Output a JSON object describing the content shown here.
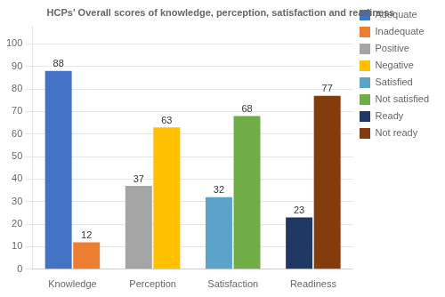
{
  "chart_data": {
    "type": "bar",
    "title": "HCPs' Overall scores of knowledge, perception, satisfaction and readiness",
    "categories": [
      "Knowledge",
      "Perception",
      "Satisfaction",
      "Readiness"
    ],
    "series": [
      {
        "name": "Adequate",
        "color": "#4472C4",
        "values": [
          88,
          null,
          null,
          null
        ]
      },
      {
        "name": "Inadequate",
        "color": "#ED7D31",
        "values": [
          12,
          null,
          null,
          null
        ]
      },
      {
        "name": "Positive",
        "color": "#A5A5A5",
        "values": [
          null,
          37,
          null,
          null
        ]
      },
      {
        "name": "Negative",
        "color": "#FFC000",
        "values": [
          null,
          63,
          null,
          null
        ]
      },
      {
        "name": "Satisfied",
        "color": "#5BA3C9",
        "values": [
          null,
          null,
          32,
          null
        ]
      },
      {
        "name": "Not satisfied",
        "color": "#70AD47",
        "values": [
          null,
          null,
          68,
          null
        ]
      },
      {
        "name": "Ready",
        "color": "#1F3864",
        "values": [
          null,
          null,
          null,
          23
        ]
      },
      {
        "name": "Not ready",
        "color": "#843C0C",
        "values": [
          null,
          null,
          null,
          77
        ]
      }
    ],
    "ylim": [
      0,
      108
    ],
    "yticks": [
      0,
      10,
      20,
      30,
      40,
      50,
      60,
      70,
      80,
      90,
      100
    ],
    "grid": true,
    "legend": "right",
    "data_labels": true
  }
}
